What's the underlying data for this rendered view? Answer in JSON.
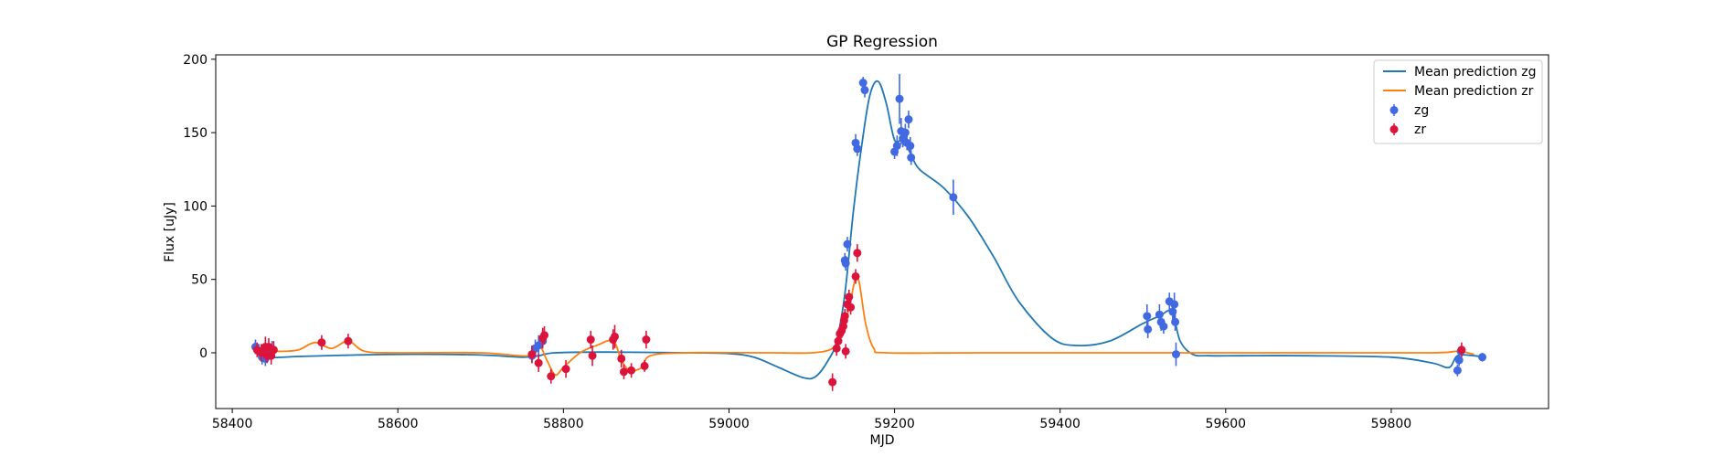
{
  "chart_data": {
    "type": "scatter",
    "title": "GP Regression",
    "xlabel": "MJD",
    "ylabel": "Flux [uJy]",
    "xlim": [
      58380,
      59990
    ],
    "ylim": [
      -38,
      203
    ],
    "xticks": [
      58400,
      58600,
      58800,
      59000,
      59200,
      59400,
      59600,
      59800
    ],
    "yticks": [
      0,
      50,
      100,
      150,
      200
    ],
    "legend_position": "top-right",
    "grid": false,
    "colors": {
      "zg_line": "#1f77b4",
      "zr_line": "#ff7f0e",
      "zg_points": "#4169e1",
      "zr_points": "#dc143c"
    },
    "legend": [
      {
        "label": "Mean prediction zg",
        "kind": "line",
        "color": "#1f77b4"
      },
      {
        "label": "Mean prediction zr",
        "kind": "line",
        "color": "#ff7f0e"
      },
      {
        "label": "zg",
        "kind": "errorbar",
        "color": "#4169e1"
      },
      {
        "label": "zr",
        "kind": "errorbar",
        "color": "#dc143c"
      }
    ],
    "series": [
      {
        "name": "Mean prediction zg",
        "kind": "line",
        "color": "#1f77b4",
        "points": [
          [
            58430,
            2
          ],
          [
            58445,
            -3
          ],
          [
            58480,
            -2.5
          ],
          [
            58550,
            -1.5
          ],
          [
            58620,
            -1
          ],
          [
            58700,
            -1.5
          ],
          [
            58750,
            -3
          ],
          [
            58770,
            -2
          ],
          [
            58790,
            0
          ],
          [
            58850,
            0.5
          ],
          [
            58950,
            0
          ],
          [
            59000,
            -0.5
          ],
          [
            59030,
            -3
          ],
          [
            59060,
            -10
          ],
          [
            59090,
            -17
          ],
          [
            59105,
            -16
          ],
          [
            59120,
            -5
          ],
          [
            59130,
            8
          ],
          [
            59140,
            40
          ],
          [
            59150,
            95
          ],
          [
            59160,
            140
          ],
          [
            59170,
            175
          ],
          [
            59180,
            185
          ],
          [
            59190,
            170
          ],
          [
            59200,
            145
          ],
          [
            59210,
            145
          ],
          [
            59220,
            135
          ],
          [
            59230,
            125
          ],
          [
            59260,
            112
          ],
          [
            59290,
            92
          ],
          [
            59320,
            65
          ],
          [
            59350,
            35
          ],
          [
            59390,
            10
          ],
          [
            59420,
            5
          ],
          [
            59460,
            8
          ],
          [
            59500,
            20
          ],
          [
            59520,
            25
          ],
          [
            59535,
            28
          ],
          [
            59545,
            8
          ],
          [
            59560,
            -1
          ],
          [
            59580,
            -2
          ],
          [
            59620,
            -2
          ],
          [
            59700,
            -2
          ],
          [
            59800,
            -3
          ],
          [
            59850,
            -7
          ],
          [
            59870,
            -10
          ],
          [
            59880,
            -2
          ],
          [
            59900,
            -2
          ],
          [
            59910,
            -3
          ]
        ]
      },
      {
        "name": "Mean prediction zr",
        "kind": "line",
        "color": "#ff7f0e",
        "points": [
          [
            58430,
            2
          ],
          [
            58440,
            2
          ],
          [
            58460,
            1
          ],
          [
            58480,
            2
          ],
          [
            58500,
            7
          ],
          [
            58520,
            3
          ],
          [
            58540,
            8
          ],
          [
            58560,
            1
          ],
          [
            58600,
            0
          ],
          [
            58700,
            0
          ],
          [
            58760,
            -2
          ],
          [
            58770,
            6
          ],
          [
            58780,
            -5
          ],
          [
            58790,
            -15
          ],
          [
            58800,
            -10
          ],
          [
            58820,
            0
          ],
          [
            58840,
            5
          ],
          [
            58860,
            8
          ],
          [
            58870,
            -5
          ],
          [
            58880,
            -12
          ],
          [
            58895,
            -10
          ],
          [
            58905,
            -2
          ],
          [
            58950,
            0
          ],
          [
            59050,
            0
          ],
          [
            59100,
            0
          ],
          [
            59125,
            3
          ],
          [
            59135,
            12
          ],
          [
            59145,
            30
          ],
          [
            59155,
            52
          ],
          [
            59165,
            20
          ],
          [
            59175,
            3
          ],
          [
            59190,
            0
          ],
          [
            59300,
            0
          ],
          [
            59500,
            0
          ],
          [
            59700,
            0
          ],
          [
            59850,
            0
          ],
          [
            59880,
            1
          ],
          [
            59900,
            -1
          ]
        ]
      },
      {
        "name": "zg",
        "kind": "errorbar",
        "color": "#4169e1",
        "points": [
          [
            58428,
            4,
            5
          ],
          [
            58432,
            1,
            5
          ],
          [
            58436,
            -3,
            5
          ],
          [
            58440,
            -4,
            5
          ],
          [
            58444,
            0,
            5
          ],
          [
            58448,
            2,
            6
          ],
          [
            58762,
            -2,
            5
          ],
          [
            58766,
            3,
            6
          ],
          [
            58770,
            5,
            7
          ],
          [
            58775,
            8,
            5
          ],
          [
            59140,
            63,
            5
          ],
          [
            59141,
            61,
            5
          ],
          [
            59143,
            74,
            5
          ],
          [
            59153,
            143,
            6
          ],
          [
            59155,
            139,
            5
          ],
          [
            59162,
            184,
            4
          ],
          [
            59164,
            179,
            5
          ],
          [
            59200,
            137,
            5
          ],
          [
            59203,
            141,
            7
          ],
          [
            59206,
            173,
            17
          ],
          [
            59208,
            151,
            9
          ],
          [
            59210,
            146,
            6
          ],
          [
            59213,
            150,
            6
          ],
          [
            59215,
            143,
            5
          ],
          [
            59217,
            159,
            6
          ],
          [
            59219,
            141,
            6
          ],
          [
            59220,
            133,
            5
          ],
          [
            59271,
            106,
            12
          ],
          [
            59505,
            25,
            8
          ],
          [
            59506,
            16,
            6
          ],
          [
            59520,
            26,
            7
          ],
          [
            59522,
            21,
            6
          ],
          [
            59525,
            18,
            5
          ],
          [
            59532,
            35,
            6
          ],
          [
            59536,
            28,
            6
          ],
          [
            59538,
            33,
            8
          ],
          [
            59539,
            21,
            6
          ],
          [
            59540,
            -1,
            8
          ],
          [
            59880,
            -12,
            4
          ],
          [
            59882,
            -5,
            4
          ],
          [
            59884,
            1,
            3
          ],
          [
            59910,
            -3,
            3
          ]
        ]
      },
      {
        "name": "zr",
        "kind": "errorbar",
        "color": "#dc143c",
        "points": [
          [
            58430,
            2,
            5
          ],
          [
            58435,
            0,
            6
          ],
          [
            58440,
            4,
            7
          ],
          [
            58442,
            -2,
            5
          ],
          [
            58444,
            4,
            6
          ],
          [
            58447,
            -2,
            6
          ],
          [
            58450,
            2,
            6
          ],
          [
            58508,
            7,
            5
          ],
          [
            58540,
            8,
            5
          ],
          [
            58762,
            -1,
            6
          ],
          [
            58770,
            -7,
            6
          ],
          [
            58775,
            10,
            7
          ],
          [
            58777,
            12,
            6
          ],
          [
            58785,
            -16,
            5
          ],
          [
            58803,
            -11,
            6
          ],
          [
            58833,
            9,
            6
          ],
          [
            58835,
            -2,
            7
          ],
          [
            58860,
            9,
            7
          ],
          [
            58862,
            11,
            8
          ],
          [
            58870,
            -4,
            6
          ],
          [
            58873,
            -13,
            5
          ],
          [
            58882,
            -12,
            5
          ],
          [
            58898,
            -9,
            4
          ],
          [
            58900,
            9,
            6
          ],
          [
            59125,
            -20,
            6
          ],
          [
            59130,
            3,
            5
          ],
          [
            59132,
            8,
            6
          ],
          [
            59134,
            13,
            5
          ],
          [
            59136,
            15,
            5
          ],
          [
            59138,
            18,
            5
          ],
          [
            59139,
            22,
            5
          ],
          [
            59140,
            25,
            5
          ],
          [
            59141,
            1,
            5
          ],
          [
            59143,
            33,
            5
          ],
          [
            59145,
            38,
            5
          ],
          [
            59147,
            31,
            5
          ],
          [
            59153,
            52,
            5
          ],
          [
            59155,
            68,
            6
          ],
          [
            59885,
            2,
            5
          ]
        ]
      }
    ]
  }
}
